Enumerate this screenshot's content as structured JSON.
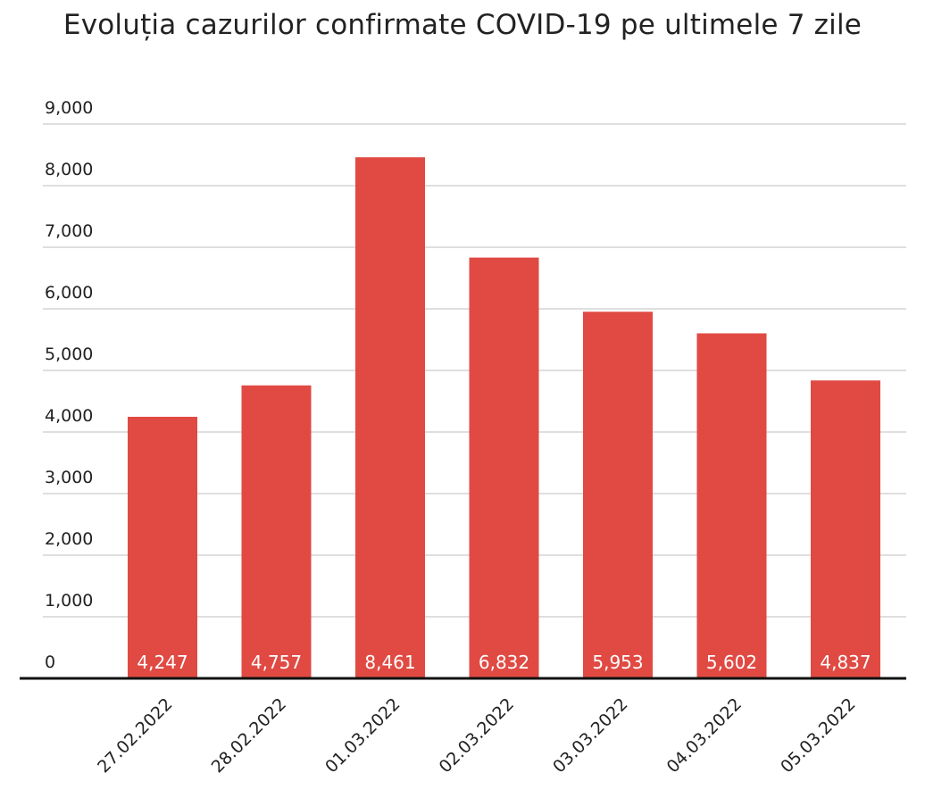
{
  "chart_data": {
    "type": "bar",
    "title": "Evoluția cazurilor confirmate COVID-19 pe ultimele 7 zile",
    "xlabel": "",
    "ylabel": "",
    "categories": [
      "27.02.2022",
      "28.02.2022",
      "01.03.2022",
      "02.03.2022",
      "03.03.2022",
      "04.03.2022",
      "05.03.2022"
    ],
    "values": [
      4247,
      4757,
      8461,
      6832,
      5953,
      5602,
      4837
    ],
    "value_labels": [
      "4,247",
      "4,757",
      "8,461",
      "6,832",
      "5,953",
      "5,602",
      "4,837"
    ],
    "yticks": [
      0,
      1000,
      2000,
      3000,
      4000,
      5000,
      6000,
      7000,
      8000,
      9000
    ],
    "ytick_labels": [
      "0",
      "1,000",
      "2,000",
      "3,000",
      "4,000",
      "5,000",
      "6,000",
      "7,000",
      "8,000",
      "9,000"
    ],
    "ylim": [
      0,
      9000
    ],
    "grid": true,
    "legend": "none",
    "bar_color": "#e04a43",
    "grid_color": "#cccccc",
    "axis_color": "#111111"
  }
}
